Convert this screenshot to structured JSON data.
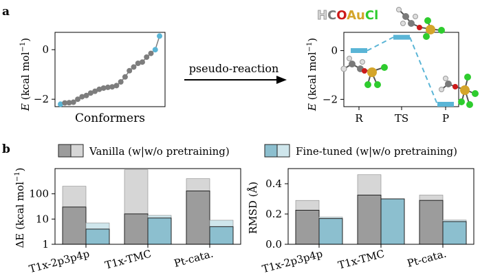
{
  "figure": {
    "panel_a_label": "a",
    "panel_b_label": "b"
  },
  "colors": {
    "vanilla_dark": "#9c9c9c",
    "vanilla_light": "#d6d6d6",
    "fine_dark": "#8cbfcf",
    "fine_light": "#cfe6ec",
    "accent": "#5ab5d6",
    "atom_c": "#7a7a7a",
    "atom_o": "#cc1a1a",
    "atom_au": "#d4a52a",
    "atom_cl": "#2ecc2e",
    "atom_h": "#dddddd"
  },
  "legend_atoms": [
    {
      "symbol": "H",
      "color": "#d8d8d8"
    },
    {
      "symbol": "C",
      "color": "#7a7a7a"
    },
    {
      "symbol": "O",
      "color": "#cc1a1a"
    },
    {
      "symbol": "Au",
      "color": "#d4a52a"
    },
    {
      "symbol": "Cl",
      "color": "#2ecc2e"
    }
  ],
  "arrow_label": "pseudo-reaction",
  "chart_data": [
    {
      "id": "conformers",
      "type": "line",
      "title": "",
      "xlabel": "Conformers",
      "ylabel_symbol": "E",
      "ylabel_units": " (kcal mol",
      "ylabel_exp": "−1",
      "ylabel_close": ")",
      "ylim": [
        -2.3,
        0.7
      ],
      "yticks": [
        {
          "value": 0,
          "label": "0"
        },
        {
          "value": -2,
          "label": "−2"
        }
      ],
      "x": [
        0,
        1,
        2,
        3,
        4,
        5,
        6,
        7,
        8,
        9,
        10,
        11,
        12,
        13,
        14,
        15,
        16,
        17,
        18,
        19,
        20,
        21,
        22,
        23
      ],
      "values": [
        -2.2,
        -2.15,
        -2.14,
        -2.12,
        -2.0,
        -1.9,
        -1.85,
        -1.75,
        -1.68,
        -1.6,
        -1.55,
        -1.52,
        -1.5,
        -1.45,
        -1.3,
        -1.1,
        -0.85,
        -0.7,
        -0.55,
        -0.5,
        -0.3,
        -0.15,
        0.0,
        0.55
      ],
      "highlight_indices": [
        0,
        22,
        23
      ]
    },
    {
      "id": "pseudo-reaction",
      "type": "line",
      "title": "",
      "xlabel": "",
      "ylabel_symbol": "E",
      "ylabel_units": " (kcal mol",
      "ylabel_exp": "−1",
      "ylabel_close": ")",
      "ylim": [
        -2.3,
        0.75
      ],
      "yticks": [
        {
          "value": 0,
          "label": "0"
        },
        {
          "value": -2,
          "label": "−2"
        }
      ],
      "categories": [
        "R",
        "TS",
        "P"
      ],
      "values": [
        0.0,
        0.55,
        -2.2
      ]
    },
    {
      "id": "energy-error",
      "type": "bar",
      "scale": "log",
      "xlabel": "",
      "ylabel_symbol": "ΔE",
      "ylabel_units": " (kcal mol",
      "ylabel_exp": "−1",
      "ylabel_close": ")",
      "ylim": [
        1,
        1000
      ],
      "yticks": [
        {
          "value": 1,
          "label": "1"
        },
        {
          "value": 10,
          "label": "10"
        },
        {
          "value": 100,
          "label": "100"
        }
      ],
      "categories": [
        "T1x-2p3p4p",
        "T1x-TMC",
        "Pt-cata."
      ],
      "series": [
        {
          "name": "Vanilla (without pretraining)",
          "values": [
            200,
            900,
            400
          ]
        },
        {
          "name": "Vanilla (with pretraining)",
          "values": [
            30,
            16,
            130
          ]
        },
        {
          "name": "Fine-tuned (without pretraining)",
          "values": [
            7,
            14,
            9
          ]
        },
        {
          "name": "Fine-tuned (with pretraining)",
          "values": [
            4,
            11,
            5
          ]
        }
      ]
    },
    {
      "id": "rmsd",
      "type": "bar",
      "xlabel": "",
      "ylabel": "RMSD (Å)",
      "ylim": [
        0,
        0.5
      ],
      "yticks": [
        {
          "value": 0,
          "label": "0.0"
        },
        {
          "value": 0.2,
          "label": "0.2"
        },
        {
          "value": 0.4,
          "label": "0.4"
        }
      ],
      "categories": [
        "T1x-2p3p4p",
        "T1x-TMC",
        "Pt-cata."
      ],
      "series": [
        {
          "name": "Vanilla (without pretraining)",
          "values": [
            0.29,
            0.46,
            0.325
          ]
        },
        {
          "name": "Vanilla (with pretraining)",
          "values": [
            0.225,
            0.325,
            0.29
          ]
        },
        {
          "name": "Fine-tuned (without pretraining)",
          "values": [
            0.18,
            0.3,
            0.16
          ]
        },
        {
          "name": "Fine-tuned (with pretraining)",
          "values": [
            0.17,
            0.3,
            0.15
          ]
        }
      ]
    }
  ],
  "legend": {
    "vanilla_label": "Vanilla (w|w/o pretraining)",
    "fine_label": "Fine-tuned (w|w/o pretraining)"
  }
}
